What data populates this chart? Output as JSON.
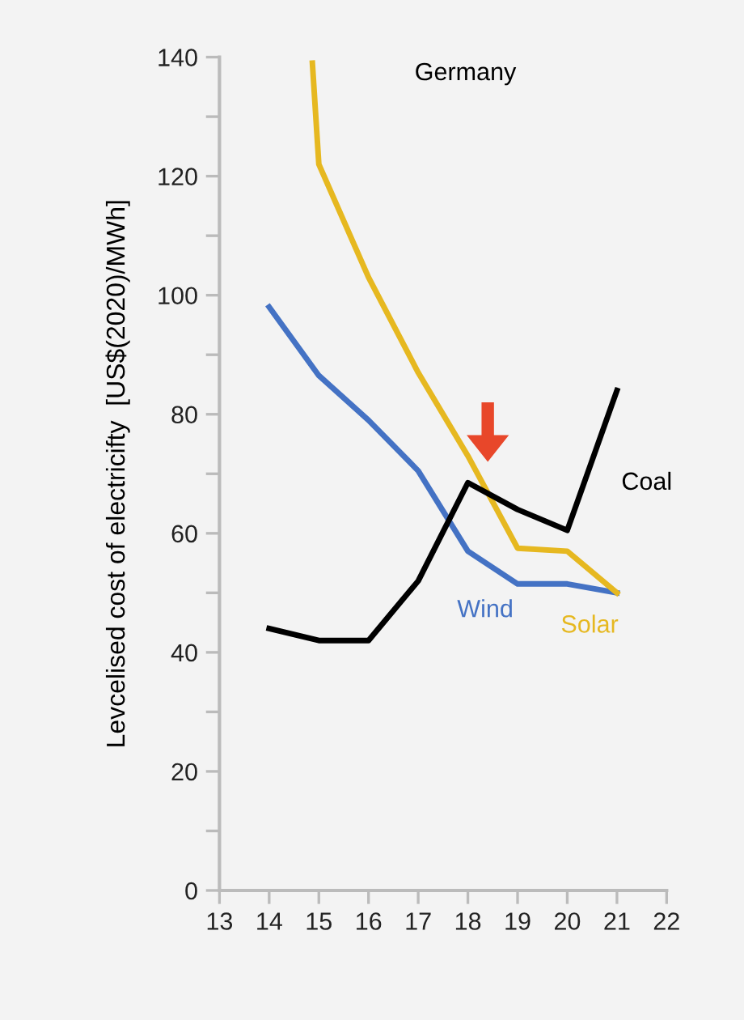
{
  "chart_data": {
    "type": "line",
    "title": "Germany",
    "ylabel": "Levcelised cost of electricifty  [US$(2020)/MWh]",
    "xlim": [
      13,
      22
    ],
    "xticks": [
      13,
      14,
      15,
      16,
      17,
      18,
      19,
      20,
      21,
      22
    ],
    "ylim": [
      0,
      140
    ],
    "yticks": [
      0,
      {
        "value": 10,
        "label": null
      },
      20,
      {
        "value": 30,
        "label": null
      },
      40,
      {
        "value": 50,
        "label": null
      },
      60,
      {
        "value": 70,
        "label": null
      },
      80,
      {
        "value": 90,
        "label": null
      },
      100,
      {
        "value": 110,
        "label": null
      },
      120,
      {
        "value": 130,
        "label": null
      },
      140
    ],
    "grid": false,
    "legend": false,
    "marker": "none",
    "line_style": "solid",
    "series": [
      {
        "name": "Wind",
        "color": "#4472c4",
        "x": [
          14,
          15,
          16,
          17,
          18,
          19,
          20,
          21
        ],
        "values": [
          98,
          86.5,
          79,
          70.5,
          57,
          51.5,
          51.5,
          50
        ]
      },
      {
        "name": "Solar",
        "color": "#e6b820",
        "x": [
          14.87,
          15,
          16,
          17,
          18,
          19,
          20,
          21
        ],
        "values": [
          139,
          122,
          103,
          87,
          73,
          57.5,
          57,
          50
        ]
      },
      {
        "name": "Coal",
        "color": "#000000",
        "x": [
          14,
          15,
          16,
          17,
          18,
          19,
          20,
          21
        ],
        "values": [
          44,
          42,
          42,
          52,
          68.5,
          64,
          60.5,
          84
        ]
      }
    ]
  }
}
